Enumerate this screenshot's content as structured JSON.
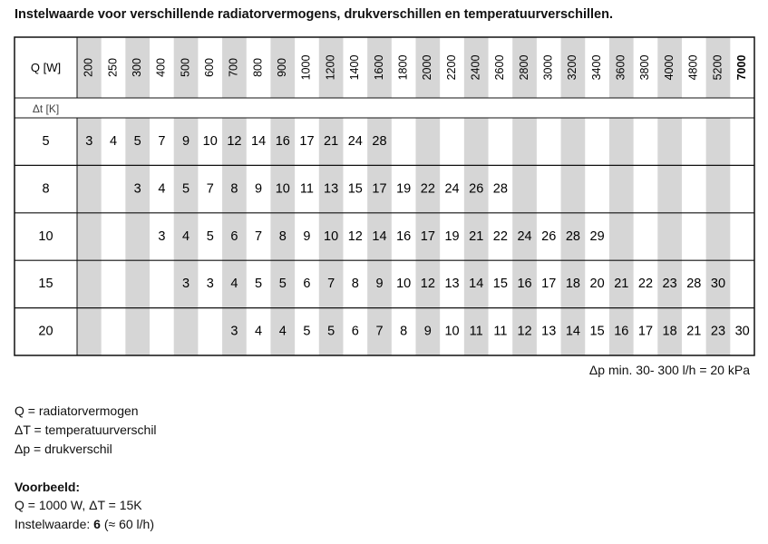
{
  "title": "Instelwaarde voor verschillende radiatorvermogens, drukverschillen en temperatuurverschillen.",
  "table": {
    "q_label": "Q [W]",
    "dt_label": "Δt [K]",
    "columns": [
      200,
      250,
      300,
      400,
      500,
      600,
      700,
      800,
      900,
      1000,
      1200,
      1400,
      1600,
      1800,
      2000,
      2200,
      2400,
      2600,
      2800,
      3000,
      3200,
      3400,
      3600,
      3800,
      4000,
      4800,
      5200,
      7000
    ],
    "rows": [
      {
        "dt": 5,
        "cells": [
          3,
          4,
          5,
          7,
          9,
          10,
          12,
          14,
          16,
          17,
          21,
          24,
          28,
          null,
          null,
          null,
          null,
          null,
          null,
          null,
          null,
          null,
          null,
          null,
          null,
          null,
          null,
          null
        ]
      },
      {
        "dt": 8,
        "cells": [
          null,
          null,
          3,
          4,
          5,
          7,
          8,
          9,
          10,
          11,
          13,
          15,
          17,
          19,
          22,
          24,
          26,
          28,
          null,
          null,
          null,
          null,
          null,
          null,
          null,
          null,
          null,
          null
        ]
      },
      {
        "dt": 10,
        "cells": [
          null,
          null,
          null,
          3,
          4,
          5,
          6,
          7,
          8,
          9,
          10,
          12,
          14,
          16,
          17,
          19,
          21,
          22,
          24,
          26,
          28,
          29,
          null,
          null,
          null,
          null,
          null,
          null
        ]
      },
      {
        "dt": 15,
        "cells": [
          null,
          null,
          null,
          null,
          3,
          3,
          4,
          5,
          5,
          6,
          7,
          8,
          9,
          10,
          12,
          13,
          14,
          15,
          16,
          17,
          18,
          20,
          21,
          22,
          23,
          28,
          30,
          null
        ]
      },
      {
        "dt": 20,
        "cells": [
          null,
          null,
          null,
          null,
          null,
          null,
          3,
          4,
          4,
          5,
          5,
          6,
          7,
          8,
          9,
          10,
          11,
          11,
          12,
          13,
          14,
          15,
          16,
          17,
          18,
          21,
          23,
          30
        ]
      }
    ],
    "footnote": "Δp min. 30- 300 l/h = 20 kPa"
  },
  "legend": [
    "Q = radiatorvermogen",
    "ΔT = temperatuurverschil",
    "Δp = drukverschil"
  ],
  "example": {
    "heading": "Voorbeeld:",
    "line1": "Q = 1000 W, ΔT = 15K",
    "line2_prefix": "Instelwaarde: ",
    "line2_bold": "6",
    "line2_suffix": " (≈ 60 l/h)"
  }
}
